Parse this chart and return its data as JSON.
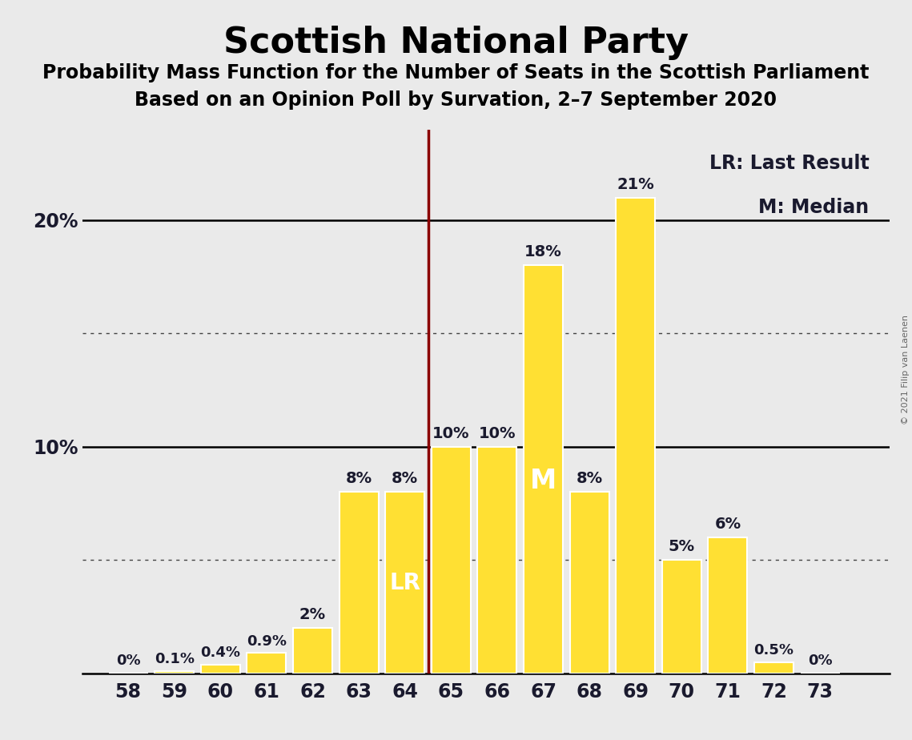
{
  "title": "Scottish National Party",
  "subtitle1": "Probability Mass Function for the Number of Seats in the Scottish Parliament",
  "subtitle2": "Based on an Opinion Poll by Survation, 2–7 September 2020",
  "copyright": "© 2021 Filip van Laenen",
  "seats": [
    58,
    59,
    60,
    61,
    62,
    63,
    64,
    65,
    66,
    67,
    68,
    69,
    70,
    71,
    72,
    73
  ],
  "probabilities": [
    0.0,
    0.1,
    0.4,
    0.9,
    2.0,
    8.0,
    8.0,
    10.0,
    10.0,
    18.0,
    8.0,
    21.0,
    5.0,
    6.0,
    0.5,
    0.0
  ],
  "bar_color": "#FFE033",
  "background_color": "#EAEAEA",
  "last_result_seat": 64,
  "median_seat": 67,
  "lr_line_color": "#8B0000",
  "legend_lr": "LR: Last Result",
  "legend_m": "M: Median",
  "ylim": [
    0,
    24
  ],
  "solid_lines": [
    10,
    20
  ],
  "dotted_lines": [
    5.0,
    15.0
  ],
  "label_color": "#1a1a2e",
  "lr_label": "LR",
  "m_label": "M",
  "bar_edge_color": "white"
}
